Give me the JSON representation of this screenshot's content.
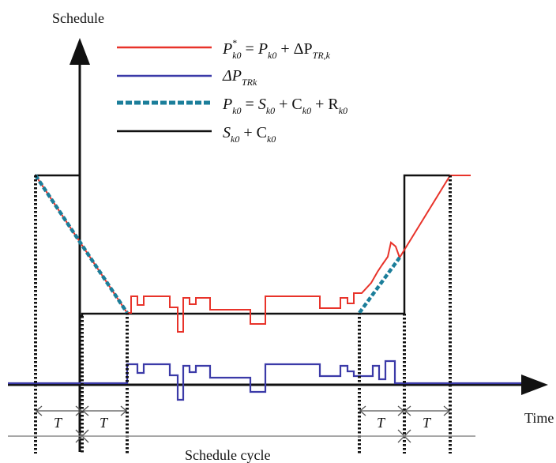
{
  "axes": {
    "y_label": "Schedule",
    "x_label": "Time"
  },
  "legend": [
    {
      "id": "p_star",
      "color": "#e8332a",
      "style": "solid",
      "sym": "P",
      "sup": "*",
      "sub": "k0",
      "eq": " = ",
      "rhs": [
        {
          "sym": "P",
          "sub": "k0"
        },
        {
          "op": " + ΔP",
          "sub": "TR,k"
        }
      ]
    },
    {
      "id": "delta_p",
      "color": "#3b3aa8",
      "style": "solid",
      "sym": "ΔP",
      "sub": "TRk"
    },
    {
      "id": "p_k0",
      "color": "#1b7e9a",
      "style": "dashed",
      "sym": "P",
      "sub": "k0",
      "eq": " = ",
      "rhs": [
        {
          "sym": "S",
          "sub": "k0"
        },
        {
          "op": " + C",
          "sub": "k0"
        },
        {
          "op": " + R",
          "sub": "k0"
        }
      ]
    },
    {
      "id": "s_c",
      "color": "#111111",
      "style": "solid",
      "sym": "S",
      "sub": "k0",
      "rhs": [
        {
          "op": " + C",
          "sub": "k0"
        }
      ]
    }
  ],
  "intervals": {
    "t1": "T",
    "t2": "T",
    "t3": "T",
    "t4": "T"
  },
  "cycle_label": "Schedule cycle",
  "colors": {
    "red": "#e8332a",
    "blue": "#3b3aa8",
    "teal": "#1b7e9a",
    "black": "#111111",
    "gray": "#8a8a8a"
  }
}
